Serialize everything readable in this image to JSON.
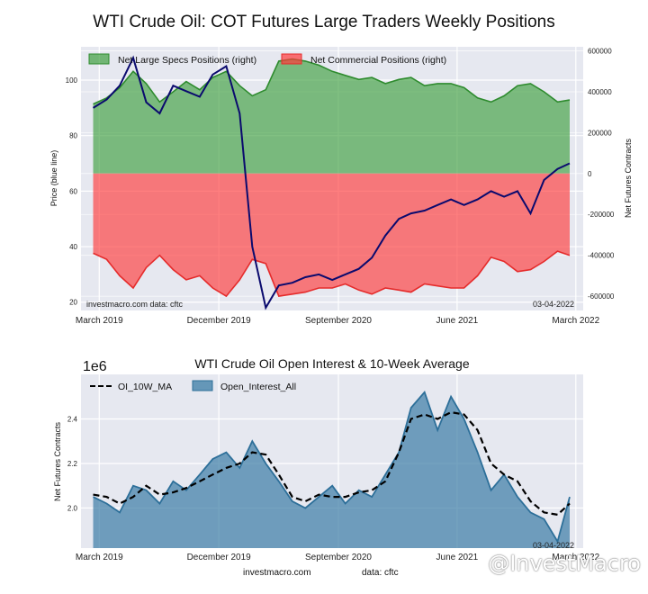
{
  "title": "WTI Crude Oil: COT Futures Large Traders Weekly Positions",
  "footer": {
    "source_site": "investmacro.com",
    "source_data": "data: cftc"
  },
  "watermark": "@InvestMacro",
  "colors": {
    "background_plot": "#e6e8f0",
    "price_line": "#0a0a6e",
    "specs": "#3f9f3f",
    "commercial": "#ff3b3b",
    "oi": "#3a7ca5"
  },
  "chart_data": [
    {
      "type": "area",
      "title": "",
      "ylabel_left": "Price (blue line)",
      "ylabel_right": "Net Futures Contracts",
      "ylim_left": [
        17,
        112
      ],
      "ylim_right": [
        -670000,
        620000
      ],
      "x_range": [
        "2019-02-01",
        "2022-04-01"
      ],
      "x_ticks": [
        {
          "date": "2019-03-15",
          "label": "March 2019"
        },
        {
          "date": "2019-12-15",
          "label": "December 2019"
        },
        {
          "date": "2020-09-15",
          "label": "September 2020"
        },
        {
          "date": "2021-06-15",
          "label": "June 2021"
        },
        {
          "date": "2022-03-15",
          "label": "March 2022"
        }
      ],
      "y_ticks_left": [
        "20",
        "40",
        "60",
        "80",
        "100"
      ],
      "y_ticks_right": [
        "-600000",
        "-400000",
        "-200000",
        "0",
        "200000",
        "400000",
        "600000"
      ],
      "legend": [
        "Net Large Specs Positions (right)",
        "Net Commercial Positions (right)"
      ],
      "legend_placement": "top-left",
      "note_left": "investmacro.com   data: cftc",
      "note_right": "03-04-2022",
      "grid": true,
      "series": [
        {
          "name": "Net Large Specs Positions (right)",
          "x": [
            "2019-03-01",
            "2019-04-01",
            "2019-05-01",
            "2019-06-01",
            "2019-07-01",
            "2019-08-01",
            "2019-09-01",
            "2019-10-01",
            "2019-11-01",
            "2019-12-01",
            "2020-01-01",
            "2020-02-01",
            "2020-03-01",
            "2020-04-01",
            "2020-05-01",
            "2020-06-01",
            "2020-07-01",
            "2020-08-01",
            "2020-09-01",
            "2020-10-01",
            "2020-11-01",
            "2020-12-01",
            "2021-01-01",
            "2021-02-01",
            "2021-03-01",
            "2021-04-01",
            "2021-05-01",
            "2021-06-01",
            "2021-07-01",
            "2021-08-01",
            "2021-09-01",
            "2021-10-01",
            "2021-11-01",
            "2021-12-01",
            "2022-01-01",
            "2022-02-01",
            "2022-03-01"
          ],
          "values": [
            340000,
            370000,
            420000,
            500000,
            440000,
            350000,
            400000,
            450000,
            410000,
            470000,
            500000,
            430000,
            380000,
            410000,
            550000,
            560000,
            550000,
            530000,
            500000,
            480000,
            460000,
            470000,
            440000,
            460000,
            470000,
            430000,
            440000,
            440000,
            420000,
            370000,
            350000,
            380000,
            430000,
            440000,
            400000,
            350000,
            360000
          ]
        },
        {
          "name": "Net Commercial Positions (right)",
          "x": [
            "2019-03-01",
            "2019-04-01",
            "2019-05-01",
            "2019-06-01",
            "2019-07-01",
            "2019-08-01",
            "2019-09-01",
            "2019-10-01",
            "2019-11-01",
            "2019-12-01",
            "2020-01-01",
            "2020-02-01",
            "2020-03-01",
            "2020-04-01",
            "2020-05-01",
            "2020-06-01",
            "2020-07-01",
            "2020-08-01",
            "2020-09-01",
            "2020-10-01",
            "2020-11-01",
            "2020-12-01",
            "2021-01-01",
            "2021-02-01",
            "2021-03-01",
            "2021-04-01",
            "2021-05-01",
            "2021-06-01",
            "2021-07-01",
            "2021-08-01",
            "2021-09-01",
            "2021-10-01",
            "2021-11-01",
            "2021-12-01",
            "2022-01-01",
            "2022-02-01",
            "2022-03-01"
          ],
          "values": [
            -390000,
            -420000,
            -500000,
            -560000,
            -460000,
            -400000,
            -470000,
            -520000,
            -500000,
            -560000,
            -600000,
            -520000,
            -420000,
            -440000,
            -600000,
            -590000,
            -580000,
            -560000,
            -560000,
            -540000,
            -570000,
            -590000,
            -560000,
            -570000,
            -580000,
            -540000,
            -550000,
            -560000,
            -560000,
            -500000,
            -410000,
            -430000,
            -480000,
            -470000,
            -430000,
            -380000,
            -400000
          ]
        },
        {
          "name": "Price (blue line)",
          "x": [
            "2019-03-01",
            "2019-04-01",
            "2019-05-01",
            "2019-06-01",
            "2019-07-01",
            "2019-08-01",
            "2019-09-01",
            "2019-10-01",
            "2019-11-01",
            "2019-12-01",
            "2020-01-01",
            "2020-02-01",
            "2020-03-01",
            "2020-04-01",
            "2020-05-01",
            "2020-06-01",
            "2020-07-01",
            "2020-08-01",
            "2020-09-01",
            "2020-10-01",
            "2020-11-01",
            "2020-12-01",
            "2021-01-01",
            "2021-02-01",
            "2021-03-01",
            "2021-04-01",
            "2021-05-01",
            "2021-06-01",
            "2021-07-01",
            "2021-08-01",
            "2021-09-01",
            "2021-10-01",
            "2021-11-01",
            "2021-12-01",
            "2022-01-01",
            "2022-02-01",
            "2022-03-01"
          ],
          "values": [
            90,
            93,
            98,
            108,
            92,
            88,
            98,
            96,
            94,
            102,
            105,
            88,
            40,
            18,
            26,
            27,
            29,
            30,
            28,
            30,
            32,
            36,
            44,
            50,
            52,
            53,
            55,
            57,
            55,
            57,
            60,
            58,
            60,
            52,
            64,
            68,
            70
          ]
        }
      ]
    },
    {
      "type": "area",
      "title": "WTI Crude Oil Open Interest & 10-Week Average",
      "scale_label": "1e6",
      "ylabel": "Net Futures Contracts",
      "ylim": [
        1.82,
        2.6
      ],
      "x_range": [
        "2019-02-01",
        "2022-04-01"
      ],
      "x_ticks": [
        {
          "date": "2019-03-15",
          "label": "March 2019"
        },
        {
          "date": "2019-12-15",
          "label": "December 2019"
        },
        {
          "date": "2020-09-15",
          "label": "September 2020"
        },
        {
          "date": "2021-06-15",
          "label": "June 2021"
        },
        {
          "date": "2022-03-15",
          "label": "March 2022"
        }
      ],
      "y_ticks": [
        "2.0",
        "2.2",
        "2.4"
      ],
      "legend": [
        "OI_10W_MA",
        "Open_Interest_All"
      ],
      "legend_placement": "top-left",
      "note_right": "03-04-2022",
      "grid": true,
      "series": [
        {
          "name": "Open_Interest_All",
          "x": [
            "2019-03-01",
            "2019-04-01",
            "2019-05-01",
            "2019-06-01",
            "2019-07-01",
            "2019-08-01",
            "2019-09-01",
            "2019-10-01",
            "2019-11-01",
            "2019-12-01",
            "2020-01-01",
            "2020-02-01",
            "2020-03-01",
            "2020-04-01",
            "2020-05-01",
            "2020-06-01",
            "2020-07-01",
            "2020-08-01",
            "2020-09-01",
            "2020-10-01",
            "2020-11-01",
            "2020-12-01",
            "2021-01-01",
            "2021-02-01",
            "2021-03-01",
            "2021-04-01",
            "2021-05-01",
            "2021-06-01",
            "2021-07-01",
            "2021-08-01",
            "2021-09-01",
            "2021-10-01",
            "2021-11-01",
            "2021-12-01",
            "2022-01-01",
            "2022-02-01",
            "2022-03-01"
          ],
          "values": [
            2.05,
            2.02,
            1.98,
            2.1,
            2.08,
            2.02,
            2.12,
            2.08,
            2.15,
            2.22,
            2.25,
            2.18,
            2.3,
            2.2,
            2.12,
            2.03,
            2.0,
            2.05,
            2.1,
            2.02,
            2.08,
            2.05,
            2.15,
            2.25,
            2.45,
            2.52,
            2.35,
            2.5,
            2.4,
            2.25,
            2.08,
            2.15,
            2.05,
            1.98,
            1.95,
            1.85,
            2.05
          ]
        },
        {
          "name": "OI_10W_MA",
          "x": [
            "2019-03-01",
            "2019-04-01",
            "2019-05-01",
            "2019-06-01",
            "2019-07-01",
            "2019-08-01",
            "2019-09-01",
            "2019-10-01",
            "2019-11-01",
            "2019-12-01",
            "2020-01-01",
            "2020-02-01",
            "2020-03-01",
            "2020-04-01",
            "2020-05-01",
            "2020-06-01",
            "2020-07-01",
            "2020-08-01",
            "2020-09-01",
            "2020-10-01",
            "2020-11-01",
            "2020-12-01",
            "2021-01-01",
            "2021-02-01",
            "2021-03-01",
            "2021-04-01",
            "2021-05-01",
            "2021-06-01",
            "2021-07-01",
            "2021-08-01",
            "2021-09-01",
            "2021-10-01",
            "2021-11-01",
            "2021-12-01",
            "2022-01-01",
            "2022-02-01",
            "2022-03-01"
          ],
          "values": [
            2.06,
            2.05,
            2.02,
            2.05,
            2.1,
            2.06,
            2.07,
            2.09,
            2.12,
            2.15,
            2.18,
            2.2,
            2.25,
            2.24,
            2.15,
            2.05,
            2.03,
            2.06,
            2.05,
            2.05,
            2.07,
            2.08,
            2.12,
            2.25,
            2.4,
            2.42,
            2.4,
            2.43,
            2.42,
            2.35,
            2.2,
            2.15,
            2.12,
            2.03,
            1.98,
            1.97,
            2.02
          ]
        }
      ]
    }
  ]
}
